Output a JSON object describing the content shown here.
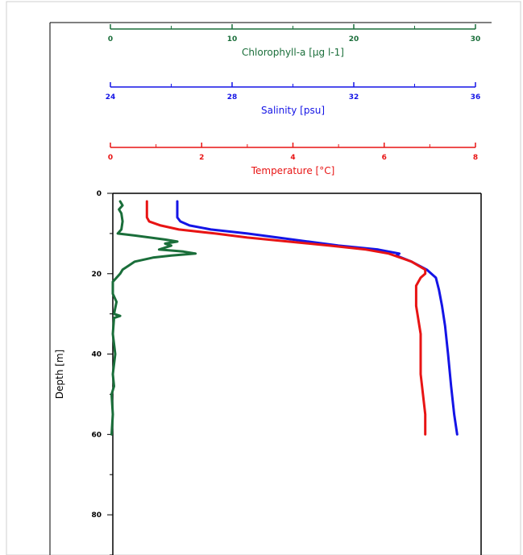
{
  "chart_data": {
    "type": "line",
    "title": "",
    "ylabel": "Depth [m]",
    "ylim": [
      0,
      90
    ],
    "y_inverted": true,
    "y_ticks": [
      0,
      20,
      40,
      60,
      80
    ],
    "y_tick_labels": [
      "0",
      "20",
      "40",
      "60",
      "80"
    ],
    "grid": false,
    "legend": "none",
    "x_axes": [
      {
        "id": "chlorophyll",
        "label": "Chlorophyll-a [µg l-1]",
        "color": "#1a6e3a",
        "xlim": [
          0,
          30
        ],
        "ticks": [
          0,
          10,
          20,
          30
        ],
        "tick_labels": [
          "0",
          "10",
          "20",
          "30"
        ]
      },
      {
        "id": "salinity",
        "label": "Salinity [psu]",
        "color": "#1414e6",
        "xlim": [
          24,
          36
        ],
        "ticks": [
          24,
          28,
          32,
          36
        ],
        "tick_labels": [
          "24",
          "28",
          "32",
          "36"
        ]
      },
      {
        "id": "temperature",
        "label": "Temperature [°C]",
        "color": "#e81414",
        "xlim": [
          0,
          8
        ],
        "ticks": [
          0,
          2,
          4,
          6,
          8
        ],
        "tick_labels": [
          "0",
          "2",
          "4",
          "6",
          "8"
        ]
      }
    ],
    "series": [
      {
        "axis": "salinity",
        "color": "#1414e6",
        "points": [
          [
            26.2,
            2
          ],
          [
            26.2,
            6
          ],
          [
            26.3,
            7
          ],
          [
            26.6,
            8
          ],
          [
            27.3,
            9
          ],
          [
            28.5,
            10
          ],
          [
            29.5,
            11
          ],
          [
            30.5,
            12
          ],
          [
            31.5,
            13
          ],
          [
            32.8,
            14
          ],
          [
            33.5,
            15
          ],
          [
            33.4,
            15.5
          ],
          [
            33.9,
            17
          ],
          [
            34.4,
            19
          ],
          [
            34.7,
            21
          ],
          [
            34.8,
            24
          ],
          [
            34.9,
            28
          ],
          [
            35.0,
            33
          ],
          [
            35.1,
            40
          ],
          [
            35.2,
            48
          ],
          [
            35.3,
            55
          ],
          [
            35.4,
            60
          ]
        ]
      },
      {
        "axis": "temperature",
        "color": "#e81414",
        "points": [
          [
            0.8,
            2
          ],
          [
            0.8,
            6
          ],
          [
            0.85,
            7
          ],
          [
            1.1,
            8
          ],
          [
            1.5,
            9
          ],
          [
            2.3,
            10
          ],
          [
            3.0,
            11
          ],
          [
            3.9,
            12
          ],
          [
            4.8,
            13
          ],
          [
            5.6,
            14
          ],
          [
            6.1,
            15
          ],
          [
            6.6,
            17
          ],
          [
            6.9,
            19
          ],
          [
            6.9,
            20
          ],
          [
            6.8,
            21
          ],
          [
            6.7,
            23
          ],
          [
            6.7,
            28
          ],
          [
            6.8,
            35
          ],
          [
            6.8,
            45
          ],
          [
            6.9,
            55
          ],
          [
            6.9,
            60
          ]
        ]
      },
      {
        "axis": "chlorophyll",
        "color": "#1a6e3a",
        "points": [
          [
            0.8,
            2
          ],
          [
            1.0,
            3
          ],
          [
            0.7,
            4
          ],
          [
            0.9,
            5
          ],
          [
            1.0,
            7
          ],
          [
            0.9,
            9
          ],
          [
            0.6,
            10
          ],
          [
            2.0,
            10.5
          ],
          [
            4.5,
            11.5
          ],
          [
            5.5,
            12
          ],
          [
            4.5,
            12.5
          ],
          [
            5.0,
            13
          ],
          [
            4.0,
            14
          ],
          [
            6.0,
            14.5
          ],
          [
            7.0,
            15
          ],
          [
            5.0,
            15.5
          ],
          [
            3.5,
            16
          ],
          [
            2.0,
            17
          ],
          [
            1.5,
            18
          ],
          [
            1.0,
            19
          ],
          [
            0.8,
            20
          ],
          [
            0.5,
            21
          ],
          [
            0.2,
            22
          ],
          [
            0.2,
            25
          ],
          [
            0.5,
            27
          ],
          [
            0.3,
            30
          ],
          [
            0.8,
            30.5
          ],
          [
            0.3,
            31
          ],
          [
            0.2,
            35
          ],
          [
            0.4,
            40
          ],
          [
            0.2,
            45
          ],
          [
            0.3,
            48
          ],
          [
            0.1,
            50
          ],
          [
            0.2,
            55
          ],
          [
            0.1,
            60
          ]
        ]
      }
    ]
  }
}
